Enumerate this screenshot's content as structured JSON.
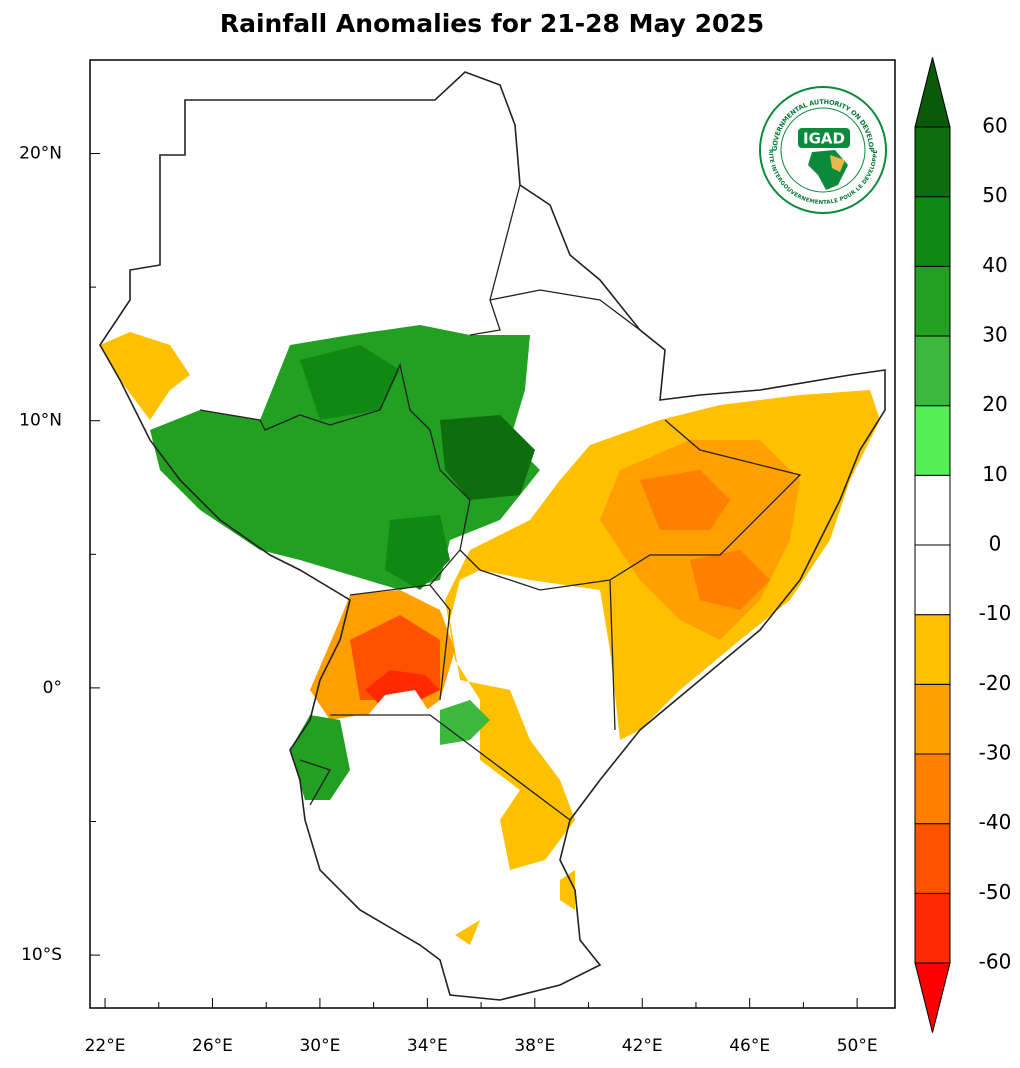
{
  "map": {
    "title": "Rainfall Anomalies for 21-28 May 2025",
    "xlim": [
      21.44,
      51.41
    ],
    "ylim": [
      -11.98,
      23.5
    ],
    "xticks": [
      {
        "value": 22,
        "label": "22°E"
      },
      {
        "value": 26,
        "label": "26°E"
      },
      {
        "value": 30,
        "label": "30°E"
      },
      {
        "value": 34,
        "label": "34°E"
      },
      {
        "value": 38,
        "label": "38°E"
      },
      {
        "value": 42,
        "label": "42°E"
      },
      {
        "value": 46,
        "label": "46°E"
      },
      {
        "value": 50,
        "label": "50°E"
      }
    ],
    "xminor": [
      24,
      28,
      32,
      36,
      40,
      44,
      48
    ],
    "yticks": [
      {
        "value": 20,
        "label": "20°N"
      },
      {
        "value": 10,
        "label": "10°N"
      },
      {
        "value": 0,
        "label": "0°"
      },
      {
        "value": -10,
        "label": "10°S"
      }
    ],
    "yminor": [
      15,
      5,
      -5
    ],
    "colorbar": {
      "levels": [
        -60,
        -50,
        -40,
        -30,
        -20,
        -10,
        0,
        10,
        20,
        30,
        40,
        50,
        60
      ],
      "colors": [
        "#ff0000",
        "#ff2a00",
        "#ff5200",
        "#ff7f00",
        "#ff9f00",
        "#ffc000",
        "#ffffff",
        "#ffffff",
        "#55ee55",
        "#3cb83c",
        "#22a022",
        "#118811",
        "#0e6e0e",
        "#0a5a0a"
      ]
    },
    "logo": {
      "name": "IGAD",
      "top": "INTERGOVERNMENTAL AUTHORITY ON DEVELOPMENT",
      "bottom": "AUTORITE INTERGOUVERNEMENTALE POUR LE DEVELOPPEMENT"
    }
  }
}
